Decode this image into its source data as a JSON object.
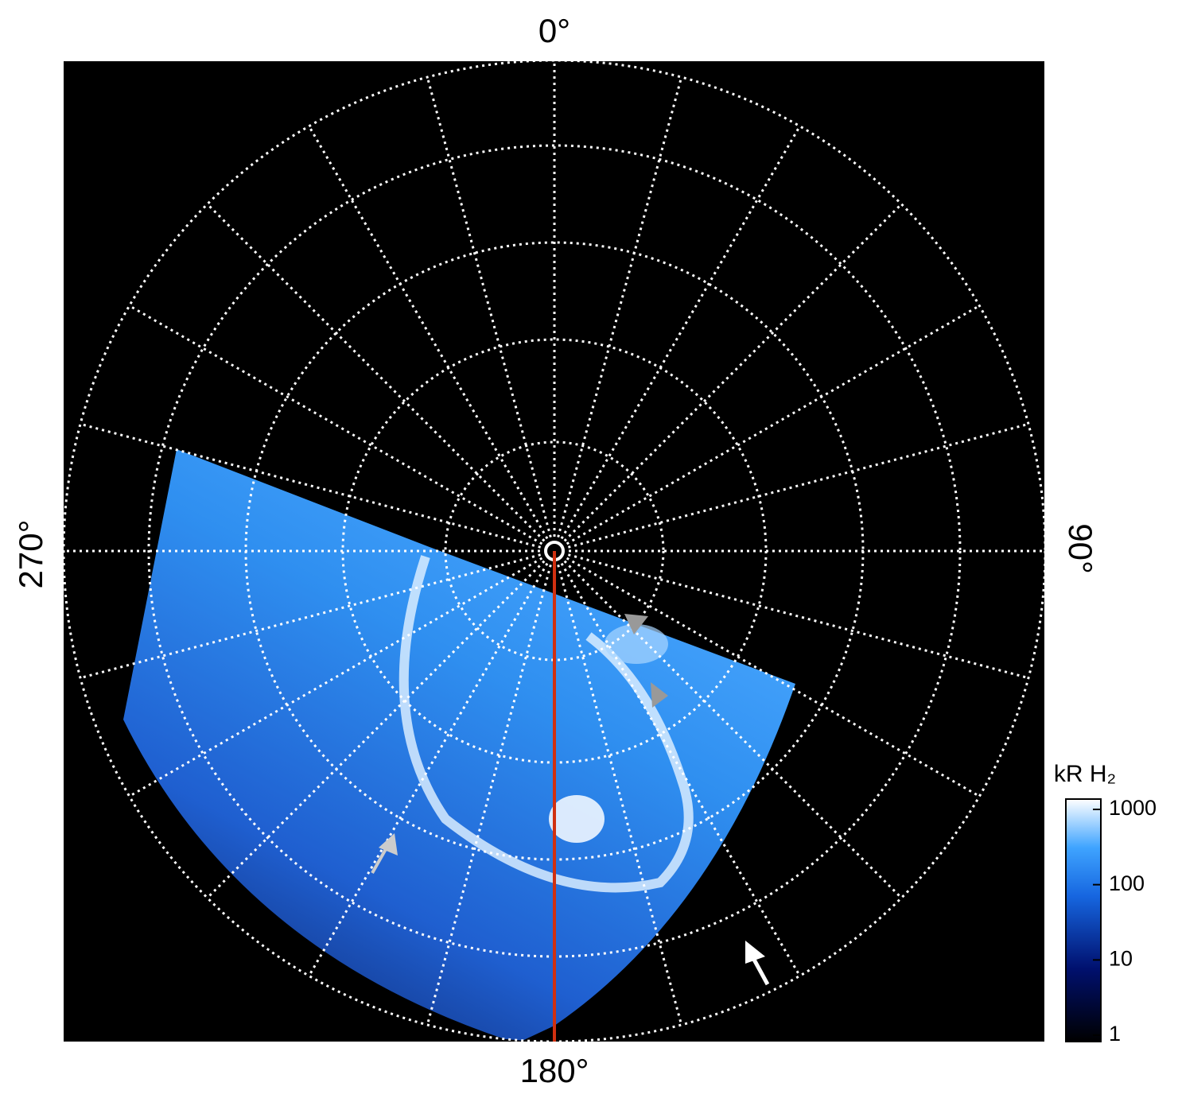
{
  "map": {
    "labels": {
      "top": "0°",
      "right": "90°",
      "bottom": "180°",
      "left": "270°"
    }
  },
  "colorbar": {
    "title": "kR H₂",
    "scale": "log",
    "lim": [
      1,
      1000
    ],
    "ticks": [
      1,
      10,
      100,
      1000
    ]
  }
}
